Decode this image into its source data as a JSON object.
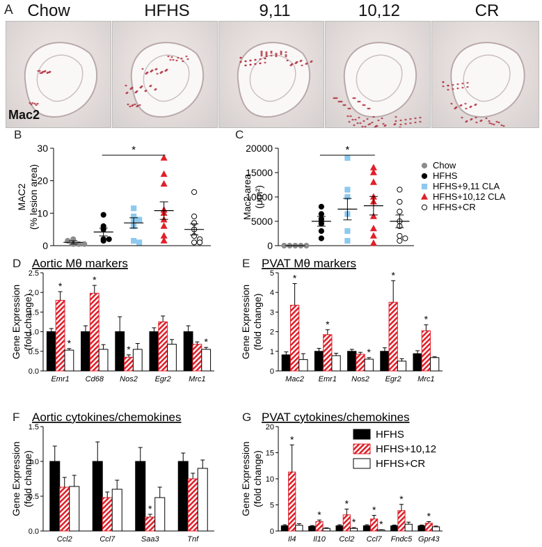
{
  "panel_A": {
    "letter": "A",
    "stain": "Mac2",
    "conditions": [
      "Chow",
      "HFHS",
      "9,11",
      "10,12",
      "CR"
    ]
  },
  "legend_BC": [
    "Chow",
    "HFHS",
    "HFHS+9,11 CLA",
    "HFHS+10,12 CLA",
    "HFHS+CR"
  ],
  "legend_G": [
    "HFHS",
    "HFHS+10,12",
    "HFHS+CR"
  ],
  "colors": {
    "chow": "#8c8c8c",
    "hfhs": "#000000",
    "cla911": "#8ec9ee",
    "cla1012": "#e0202a",
    "cr": "#ffffff",
    "stain": "#b03040"
  },
  "chart_data": [
    {
      "id": "B",
      "letter": "B",
      "type": "scatter",
      "ylabel": "MAC2",
      "ylabel2": "(% lesion area)",
      "ylim": [
        0,
        30
      ],
      "yticks": [
        0,
        10,
        20,
        30
      ],
      "significance": {
        "from": 1,
        "to": 3,
        "label": "*"
      },
      "groups": [
        {
          "name": "Chow",
          "points": [
            0.5,
            0.5,
            1.5,
            2,
            0.5
          ],
          "mean": 1.0,
          "sem": 0.5
        },
        {
          "name": "HFHS",
          "points": [
            9.5,
            6,
            2,
            2,
            5,
            1.5
          ],
          "mean": 4.2,
          "sem": 1.2
        },
        {
          "name": "HFHS+9,11 CLA",
          "points": [
            11.5,
            9,
            8,
            8,
            6,
            1.5,
            1
          ],
          "mean": 7.0,
          "sem": 1.6
        },
        {
          "name": "HFHS+10,12 CLA",
          "points": [
            27,
            22,
            19,
            11,
            10,
            8,
            6,
            3,
            1.5
          ],
          "mean": 10.8,
          "sem": 2.7
        },
        {
          "name": "HFHS+CR",
          "points": [
            16.5,
            9,
            7,
            5,
            3,
            2,
            1,
            1
          ],
          "mean": 5.0,
          "sem": 1.7
        }
      ]
    },
    {
      "id": "C",
      "letter": "C",
      "type": "scatter",
      "ylabel": "Mac2 area",
      "ylabel2": "(μm²)",
      "ylim": [
        0,
        20000
      ],
      "yticks": [
        0,
        5000,
        10000,
        15000,
        20000
      ],
      "significance": {
        "from": 1,
        "to": 3,
        "label": "*"
      },
      "groups": [
        {
          "name": "Chow",
          "points": [
            0,
            0,
            0,
            0,
            0
          ],
          "mean": 0,
          "sem": 0
        },
        {
          "name": "HFHS",
          "points": [
            8000,
            6500,
            5500,
            5000,
            4500,
            3000,
            1500
          ],
          "mean": 5000,
          "sem": 1000
        },
        {
          "name": "HFHS+9,11 CLA",
          "points": [
            18000,
            11500,
            10000,
            6500,
            3000,
            1000
          ],
          "mean": 7500,
          "sem": 2200
        },
        {
          "name": "HFHS+10,12 CLA",
          "points": [
            16000,
            15000,
            13000,
            10000,
            9000,
            6000,
            3500,
            2000,
            500
          ],
          "mean": 8200,
          "sem": 1900
        },
        {
          "name": "HFHS+CR",
          "points": [
            11500,
            9000,
            7000,
            5000,
            4000,
            2000,
            1500,
            1000
          ],
          "mean": 5000,
          "sem": 1300
        }
      ]
    },
    {
      "id": "D",
      "letter": "D",
      "type": "bar",
      "title": "Aortic Mθ markers",
      "ylabel": "Gene Expression",
      "ylabel2": "(fold change)",
      "ylim": [
        0,
        2.5
      ],
      "yticks": [
        "0.0",
        "0.5",
        "1.0",
        "1.5",
        "2.0",
        "2.5"
      ],
      "categories": [
        "Emr1",
        "Cd68",
        "Nos2",
        "Egr2",
        "Mrc1"
      ],
      "series": [
        {
          "name": "HFHS",
          "values": [
            1.0,
            1.0,
            1.0,
            1.0,
            1.0
          ],
          "err": [
            0.08,
            0.15,
            0.38,
            0.1,
            0.15
          ],
          "stars": [
            false,
            false,
            false,
            false,
            false
          ]
        },
        {
          "name": "HFHS+10,12",
          "values": [
            1.8,
            1.98,
            0.35,
            1.25,
            0.68
          ],
          "err": [
            0.22,
            0.2,
            0.06,
            0.15,
            0.06
          ],
          "stars": [
            true,
            true,
            true,
            false,
            false
          ]
        },
        {
          "name": "HFHS+CR",
          "values": [
            0.53,
            0.55,
            0.55,
            0.68,
            0.55
          ],
          "err": [
            0.04,
            0.12,
            0.15,
            0.12,
            0.05
          ],
          "stars": [
            true,
            false,
            false,
            false,
            true
          ]
        }
      ]
    },
    {
      "id": "E",
      "letter": "E",
      "type": "bar",
      "title": "PVAT Mθ markers",
      "ylabel": "Gene Expression",
      "ylabel2": "(fold change)",
      "ylim": [
        0,
        5
      ],
      "yticks": [
        "0",
        "1",
        "2",
        "3",
        "4",
        "5"
      ],
      "categories": [
        "Mac2",
        "Emr1",
        "Nos2",
        "Egr2",
        "Mrc1"
      ],
      "series": [
        {
          "name": "HFHS",
          "values": [
            0.82,
            1.0,
            1.0,
            1.0,
            0.88
          ],
          "err": [
            0.15,
            0.15,
            0.1,
            0.18,
            0.15
          ],
          "stars": [
            false,
            false,
            false,
            false,
            false
          ]
        },
        {
          "name": "HFHS+10,12",
          "values": [
            3.35,
            1.85,
            0.85,
            3.5,
            2.05
          ],
          "err": [
            1.1,
            0.25,
            0.1,
            1.1,
            0.3
          ],
          "stars": [
            true,
            true,
            false,
            true,
            true
          ]
        },
        {
          "name": "HFHS+CR",
          "values": [
            0.58,
            0.78,
            0.6,
            0.5,
            0.68
          ],
          "err": [
            0.3,
            0.12,
            0.08,
            0.12,
            0.04
          ],
          "stars": [
            false,
            false,
            true,
            false,
            false
          ]
        }
      ]
    },
    {
      "id": "F",
      "letter": "F",
      "type": "bar",
      "title": "Aortic cytokines/chemokines",
      "ylabel": "Gene Expression",
      "ylabel2": "(fold change)",
      "ylim": [
        0,
        1.5
      ],
      "yticks": [
        "0.0",
        "0.5",
        "1.0",
        "1.5"
      ],
      "categories": [
        "Ccl2",
        "Ccl7",
        "Saa3",
        "Tnf"
      ],
      "series": [
        {
          "name": "HFHS",
          "values": [
            1.0,
            1.0,
            1.0,
            1.0
          ],
          "err": [
            0.22,
            0.28,
            0.2,
            0.12
          ],
          "stars": [
            false,
            false,
            false,
            false
          ]
        },
        {
          "name": "HFHS+10,12",
          "values": [
            0.63,
            0.48,
            0.2,
            0.75
          ],
          "err": [
            0.14,
            0.08,
            0.04,
            0.08
          ],
          "stars": [
            false,
            false,
            true,
            false
          ]
        },
        {
          "name": "HFHS+CR",
          "values": [
            0.64,
            0.6,
            0.48,
            0.9
          ],
          "err": [
            0.16,
            0.13,
            0.15,
            0.12
          ],
          "stars": [
            false,
            false,
            false,
            false
          ]
        }
      ]
    },
    {
      "id": "G",
      "letter": "G",
      "type": "bar",
      "title": "PVAT cytokines/chemokines",
      "ylabel": "Gene Expression",
      "ylabel2": "(fold change)",
      "ylim": [
        0,
        20
      ],
      "yticks": [
        "0",
        "5",
        "10",
        "15",
        "20"
      ],
      "categories": [
        "Il4",
        "Il10",
        "Ccl2",
        "Ccl7",
        "Fndc5",
        "Gpr43"
      ],
      "series": [
        {
          "name": "HFHS",
          "values": [
            1.0,
            0.9,
            1.0,
            1.0,
            1.0,
            1.0
          ],
          "err": [
            0.2,
            0.15,
            0.2,
            0.2,
            0.15,
            0.15
          ],
          "stars": [
            false,
            false,
            false,
            false,
            false,
            false
          ]
        },
        {
          "name": "HFHS+10,12",
          "values": [
            11.3,
            1.8,
            3.1,
            2.3,
            3.9,
            1.5
          ],
          "err": [
            5.2,
            0.3,
            1.1,
            0.7,
            1.2,
            0.3
          ],
          "stars": [
            true,
            true,
            true,
            true,
            true,
            true
          ]
        },
        {
          "name": "HFHS+CR",
          "values": [
            1.1,
            0.5,
            0.5,
            0.2,
            1.3,
            0.8
          ],
          "err": [
            0.3,
            0.1,
            0.15,
            0.05,
            0.4,
            0.15
          ],
          "stars": [
            false,
            false,
            true,
            true,
            false,
            false
          ]
        }
      ]
    }
  ]
}
